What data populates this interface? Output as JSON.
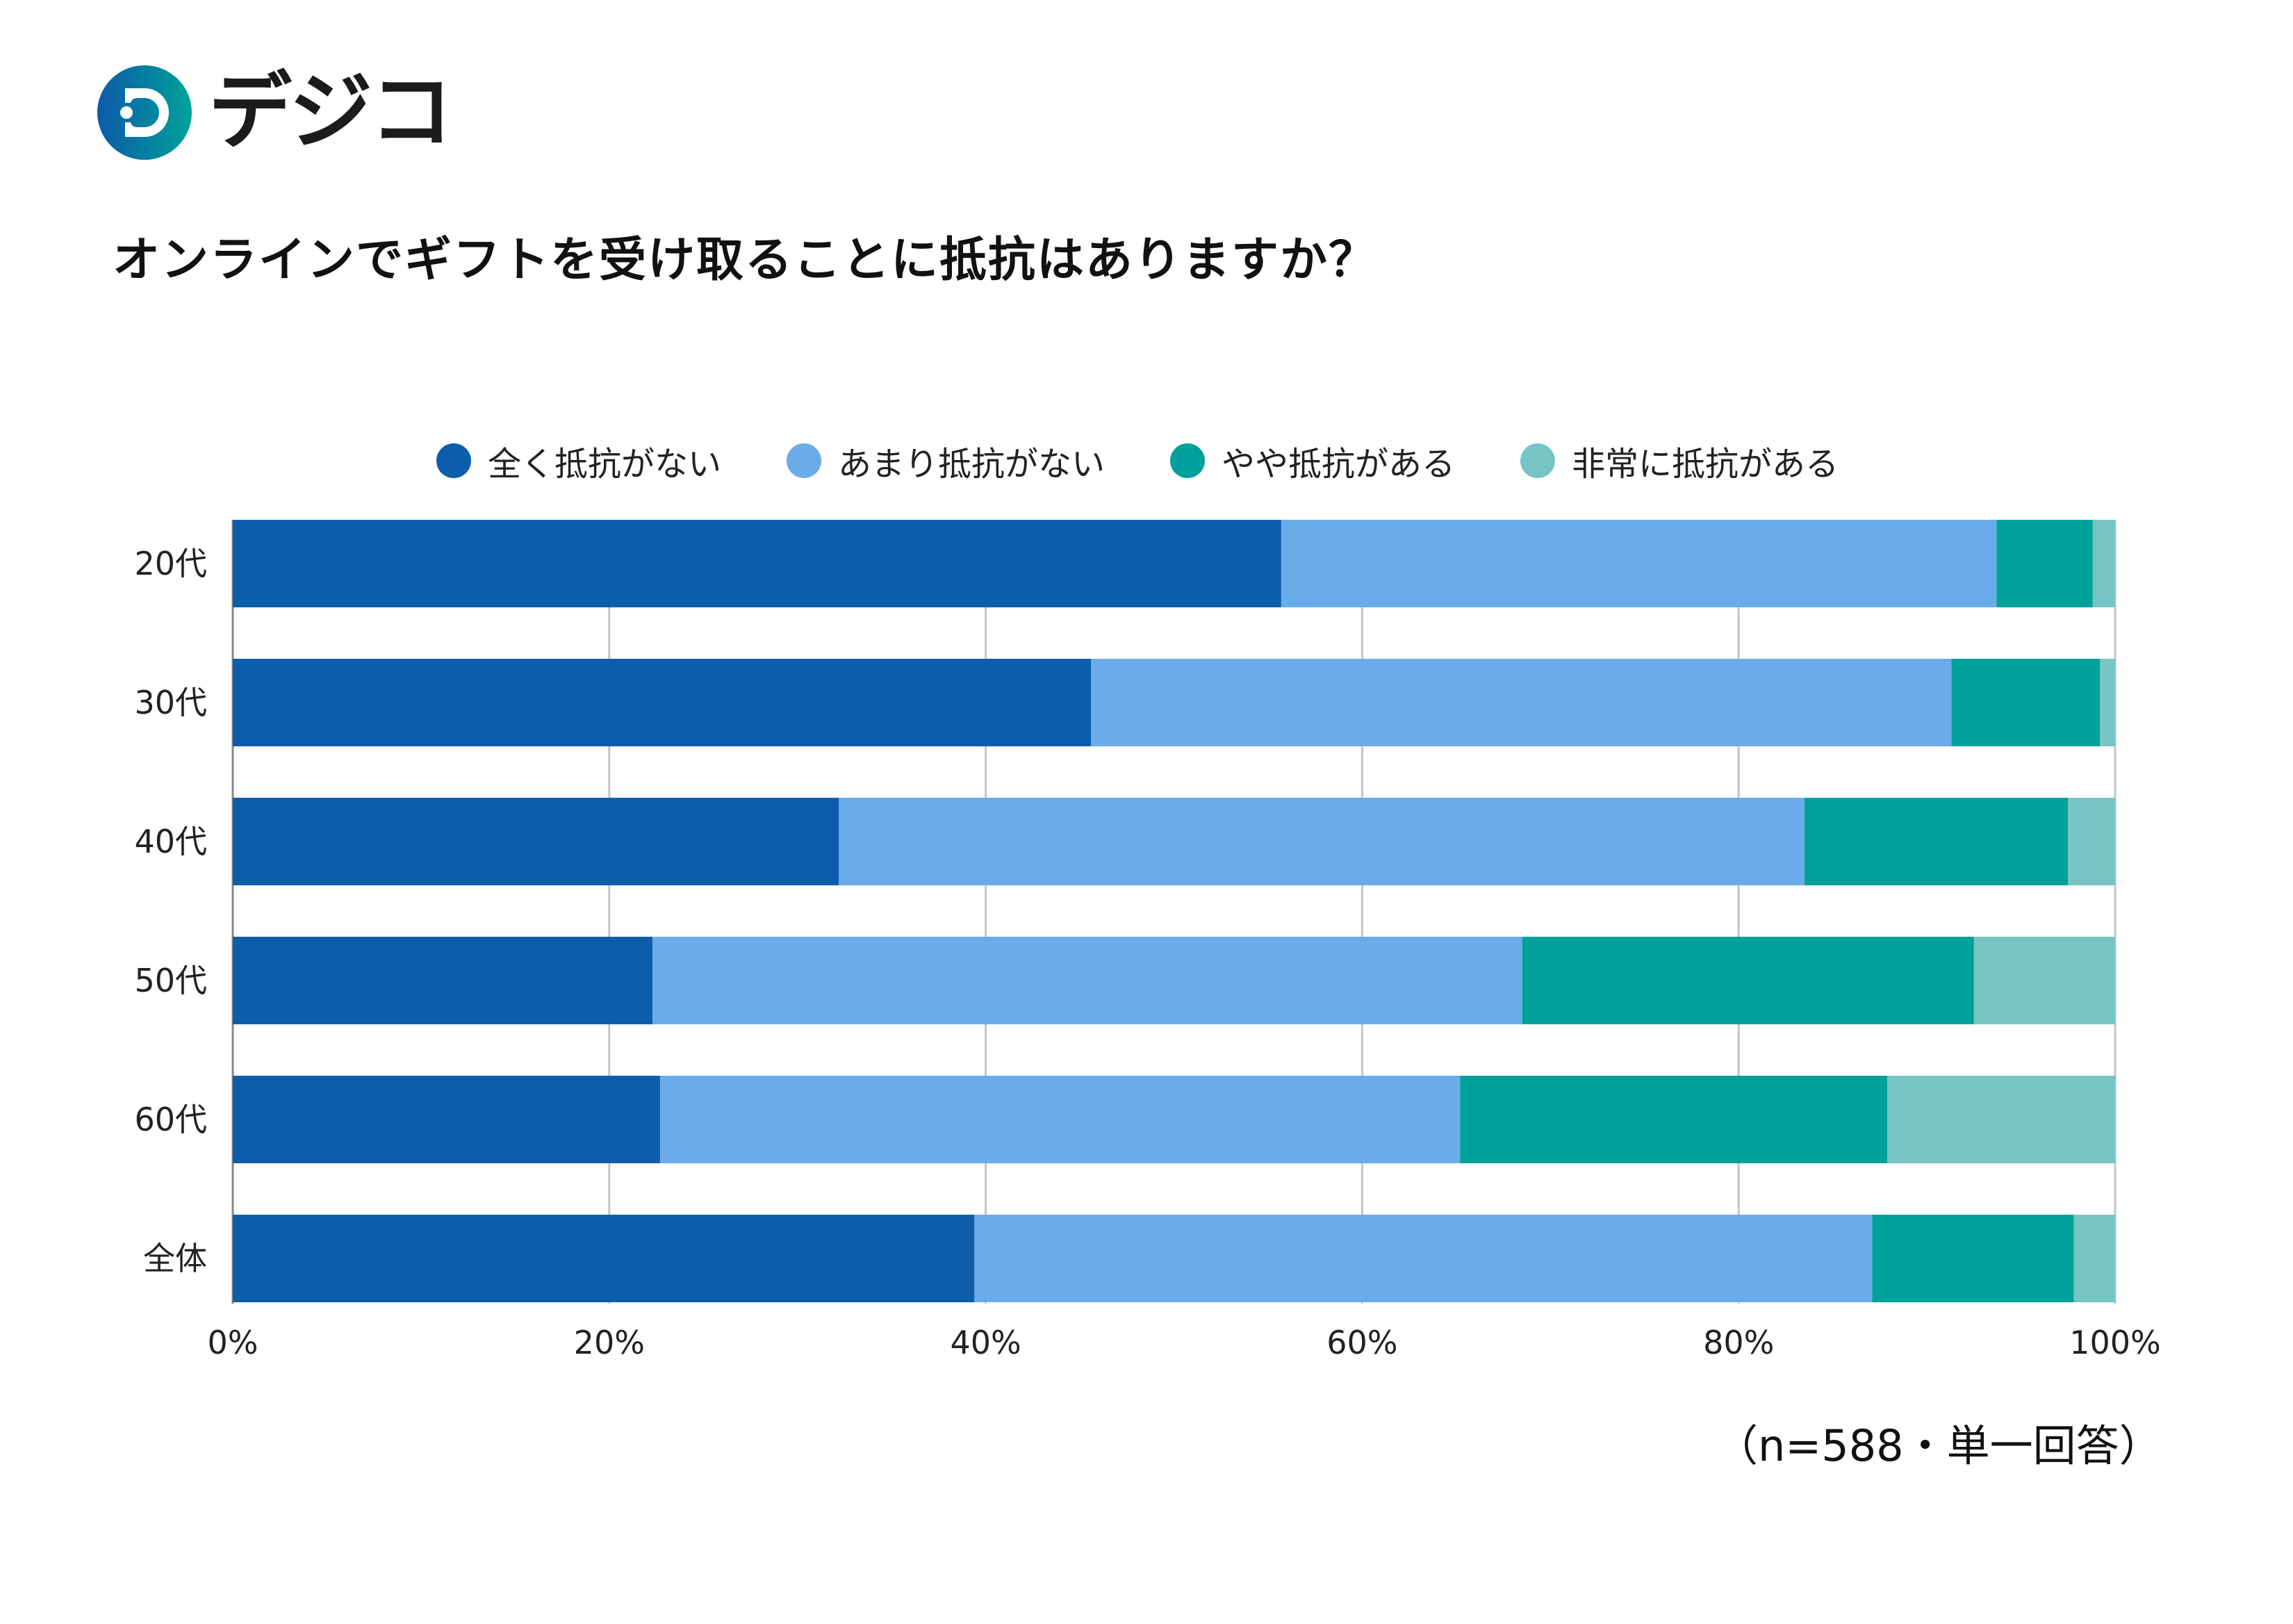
{
  "logo": {
    "text": "デジコ",
    "icon": "digico-logo-icon"
  },
  "title": "オンラインでギフトを受け取ることに抵抗はありますか？",
  "footnote": "（n=588・単一回答）",
  "chart_data": {
    "type": "bar",
    "orientation": "horizontal",
    "stacked": true,
    "title": "オンラインでギフトを受け取ることに抵抗はありますか？",
    "xlabel": "",
    "ylabel": "",
    "xlim": [
      0,
      100
    ],
    "x_ticks": [
      "0%",
      "20%",
      "40%",
      "60%",
      "80%",
      "100%"
    ],
    "grid": "vertical",
    "legend_position": "top",
    "categories": [
      "20代",
      "30代",
      "40代",
      "50代",
      "60代",
      "全体"
    ],
    "series": [
      {
        "name": "全く抵抗がない",
        "color": "#0d5eaa",
        "values": [
          55.7,
          45.6,
          32.2,
          22.3,
          22.7,
          39.4
        ]
      },
      {
        "name": "あまり抵抗がない",
        "color": "#6aacea",
        "values": [
          38.0,
          45.7,
          51.3,
          46.2,
          42.5,
          47.7
        ]
      },
      {
        "name": "やや抵抗がある",
        "color": "#00a19a",
        "values": [
          5.1,
          7.9,
          14.0,
          24.0,
          22.7,
          10.7
        ]
      },
      {
        "name": "非常に抵抗がある",
        "color": "#76c4c3",
        "values": [
          1.2,
          0.8,
          2.5,
          7.5,
          12.1,
          2.2
        ]
      }
    ],
    "sample": "n=588",
    "answer_type": "単一回答"
  }
}
